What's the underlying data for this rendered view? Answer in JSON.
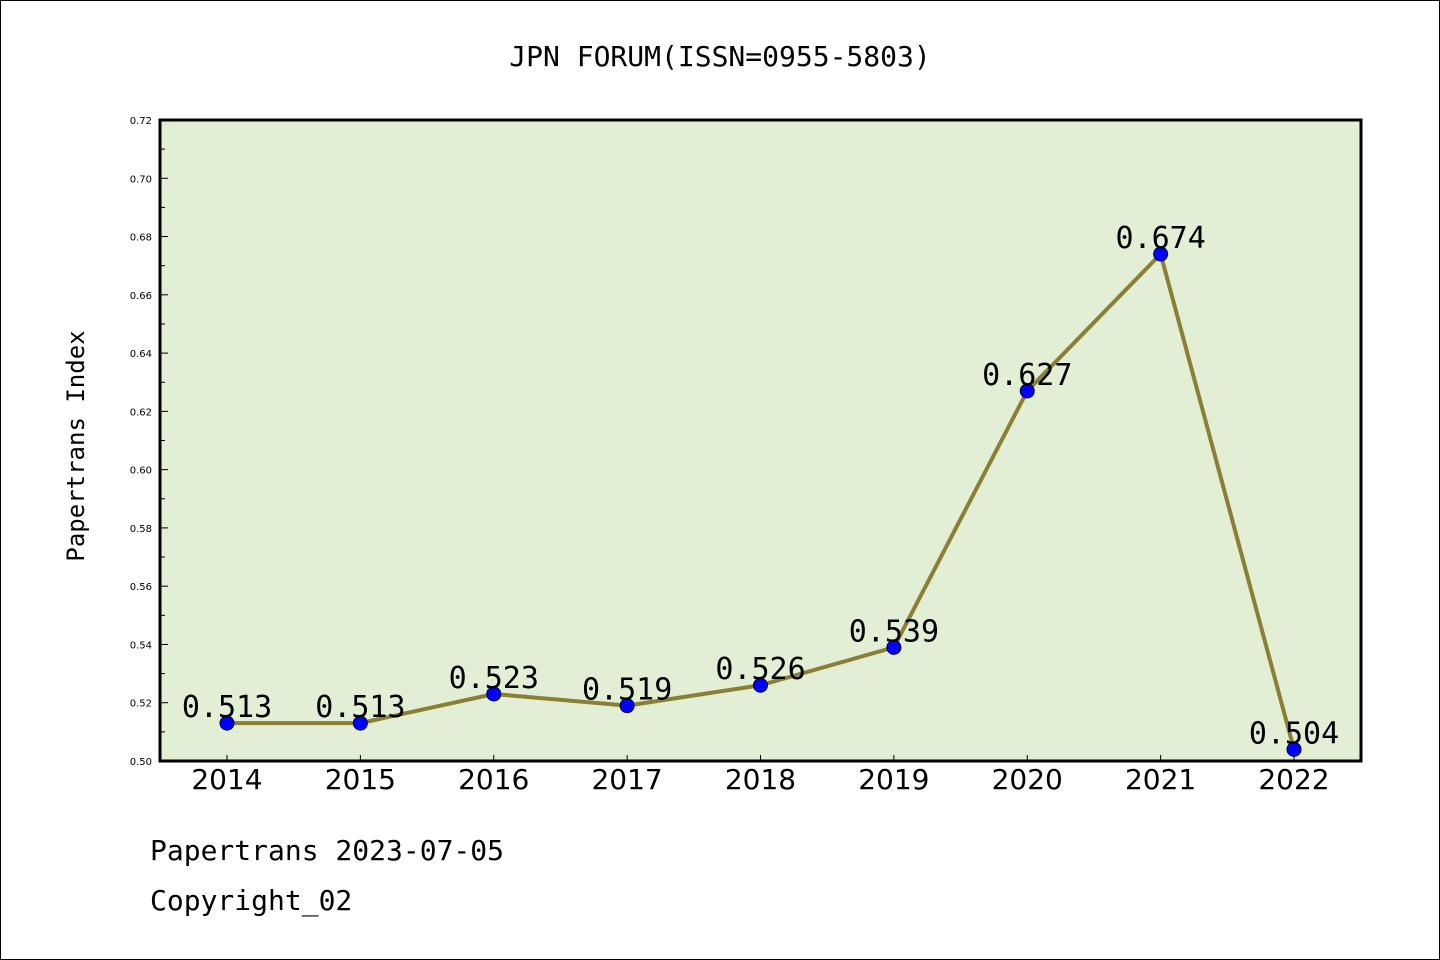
{
  "chart_data": {
    "type": "line",
    "title": "JPN FORUM(ISSN=0955-5803)",
    "xlabel": "",
    "ylabel": "Papertrans Index",
    "categories": [
      "2014",
      "2015",
      "2016",
      "2017",
      "2018",
      "2019",
      "2020",
      "2021",
      "2022"
    ],
    "series": [
      {
        "values": [
          0.513,
          0.513,
          0.523,
          0.519,
          0.526,
          0.539,
          0.627,
          0.674,
          0.504
        ],
        "data_labels": [
          "0.513",
          "0.513",
          "0.523",
          "0.519",
          "0.526",
          "0.539",
          "0.627",
          "0.674",
          "0.504"
        ]
      }
    ],
    "ylim": [
      0.5,
      0.72
    ],
    "yticks": [
      "0.50",
      "0.52",
      "0.54",
      "0.56",
      "0.58",
      "0.60",
      "0.62",
      "0.64",
      "0.66",
      "0.68",
      "0.70",
      "0.72"
    ],
    "grid": false,
    "colors": {
      "plot_background": "#e2efd4",
      "line": "#8a7f35",
      "marker": "#0000ff"
    }
  },
  "footer": {
    "source_line": "Papertrans 2023-07-05",
    "copyright_line": "Copyright_02"
  }
}
